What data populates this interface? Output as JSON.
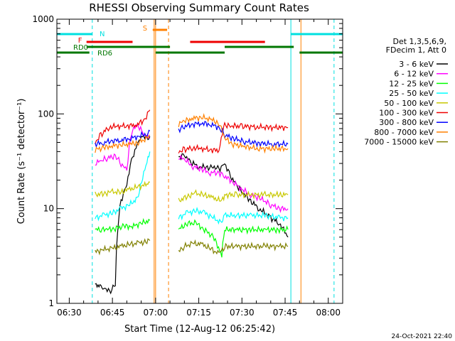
{
  "chart_data": {
    "type": "line",
    "title": "RHESSI Observing Summary Count Rates",
    "xlabel": "Start Time (12-Aug-12 06:25:42)",
    "ylabel": "Count Rate (s⁻¹ detector⁻¹)",
    "y_scale": "log",
    "ylim": [
      1,
      1000
    ],
    "xlim": [
      "06:25:42",
      "08:05:00"
    ],
    "x_ticks": [
      "06:30",
      "06:45",
      "07:00",
      "07:15",
      "07:30",
      "07:45",
      "08:00"
    ],
    "y_ticks": [
      "1",
      "10",
      "100",
      "1000"
    ],
    "timestamp": "24-Oct-2021 22:40",
    "legend": {
      "placement": "right",
      "header": [
        "Det 1,3,5,6,9,",
        "FDecim 1, Att 0"
      ]
    },
    "flags": [
      {
        "label": "N",
        "color": "#00e0e0",
        "segments": [
          [
            "06:25:42",
            "06:38:00"
          ],
          [
            "07:47:00",
            "08:05:00"
          ]
        ]
      },
      {
        "label": "F",
        "color": "#ee0000",
        "segments": [
          [
            "06:36:00",
            "06:52:00"
          ],
          [
            "07:12:00",
            "07:38:00"
          ]
        ]
      },
      {
        "label": "RD0",
        "color": "#007700",
        "segments": [
          [
            "06:36:00",
            "07:05:00"
          ],
          [
            "07:24:00",
            "07:48:00"
          ]
        ]
      },
      {
        "label": "RD6",
        "color": "#007700",
        "segments": [
          [
            "06:25:42",
            "06:37:00"
          ],
          [
            "07:00:00",
            "07:24:00"
          ],
          [
            "07:50:00",
            "08:05:00"
          ]
        ]
      },
      {
        "label": "S",
        "color": "#ff8000",
        "segments": [
          [
            "06:59:00",
            "07:04:00"
          ]
        ]
      }
    ],
    "series": [
      {
        "name": "3 - 6 keV",
        "color": "#000000",
        "segments": [
          {
            "x": [
              "06:39",
              "06:40",
              "06:41",
              "06:42",
              "06:44",
              "06:46",
              "06:48",
              "06:50",
              "06:52",
              "06:54",
              "06:55",
              "06:57",
              "06:58"
            ],
            "y": [
              1.6,
              1.6,
              1.5,
              1.5,
              1.3,
              1.6,
              12,
              18,
              35,
              50,
              60,
              55,
              58
            ]
          },
          {
            "x": [
              "07:08",
              "07:10",
              "07:12",
              "07:15",
              "07:18",
              "07:20",
              "07:22",
              "07:24",
              "07:26",
              "07:28",
              "07:30",
              "07:33",
              "07:36",
              "07:40",
              "07:43",
              "07:46"
            ],
            "y": [
              35,
              37,
              31,
              28,
              27,
              28,
              26,
              30,
              22,
              18,
              15,
              12,
              10,
              8,
              7,
              5
            ]
          }
        ]
      },
      {
        "name": "6 - 12 keV",
        "color": "#ff00ff",
        "segments": [
          {
            "x": [
              "06:39",
              "06:41",
              "06:43",
              "06:46",
              "06:48",
              "06:50",
              "06:52",
              "06:54",
              "06:56",
              "06:58"
            ],
            "y": [
              30,
              32,
              34,
              36,
              30,
              25,
              70,
              75,
              60,
              55
            ]
          },
          {
            "x": [
              "07:08",
              "07:10",
              "07:13",
              "07:16",
              "07:19",
              "07:22",
              "07:24",
              "07:27",
              "07:30",
              "07:33",
              "07:36",
              "07:40",
              "07:43",
              "07:46"
            ],
            "y": [
              35,
              33,
              28,
              26,
              24,
              24,
              22,
              19,
              16,
              14,
              13,
              11,
              10,
              10
            ]
          }
        ]
      },
      {
        "name": "12 - 25 keV",
        "color": "#00ff00",
        "segments": [
          {
            "x": [
              "06:39",
              "06:41",
              "06:43",
              "06:46",
              "06:49",
              "06:52",
              "06:55",
              "06:58"
            ],
            "y": [
              6,
              6,
              6,
              6.2,
              6.5,
              6.5,
              7,
              7.5
            ]
          },
          {
            "x": [
              "07:08",
              "07:11",
              "07:14",
              "07:17",
              "07:20",
              "07:23",
              "07:24",
              "07:28",
              "07:33",
              "07:38",
              "07:43",
              "07:46"
            ],
            "y": [
              6,
              7,
              7,
              6,
              5,
              3.2,
              6,
              6,
              6,
              6,
              6,
              6
            ]
          }
        ]
      },
      {
        "name": "25 - 50 keV",
        "color": "#00ffff",
        "segments": [
          {
            "x": [
              "06:39",
              "06:42",
              "06:45",
              "06:48",
              "06:51",
              "06:54",
              "06:57",
              "06:58"
            ],
            "y": [
              8,
              8.5,
              9,
              10,
              11,
              13,
              30,
              40
            ]
          },
          {
            "x": [
              "07:08",
              "07:11",
              "07:14",
              "07:17",
              "07:20",
              "07:23",
              "07:24",
              "07:28",
              "07:33",
              "07:38",
              "07:43",
              "07:46"
            ],
            "y": [
              8,
              9,
              9.5,
              9,
              8,
              7,
              8.5,
              8.5,
              8.5,
              8.5,
              8,
              8
            ]
          }
        ]
      },
      {
        "name": "50 - 100 keV",
        "color": "#c8c800",
        "segments": [
          {
            "x": [
              "06:39",
              "06:42",
              "06:45",
              "06:48",
              "06:51",
              "06:54",
              "06:57",
              "06:58"
            ],
            "y": [
              14,
              14.5,
              15,
              15,
              16,
              17,
              18,
              19
            ]
          },
          {
            "x": [
              "07:08",
              "07:11",
              "07:14",
              "07:17",
              "07:20",
              "07:23",
              "07:24",
              "07:28",
              "07:33",
              "07:38",
              "07:43",
              "07:46"
            ],
            "y": [
              12,
              13.5,
              14.5,
              14,
              13,
              12,
              14,
              14,
              14,
              14,
              14,
              14
            ]
          }
        ]
      },
      {
        "name": "100 - 300 keV",
        "color": "#ee0000",
        "segments": [
          {
            "x": [
              "06:39",
              "06:41",
              "06:44",
              "06:47",
              "06:50",
              "06:53",
              "06:56",
              "06:58"
            ],
            "y": [
              50,
              60,
              73,
              74,
              75,
              76,
              85,
              110
            ]
          },
          {
            "x": [
              "07:08",
              "07:10",
              "07:13",
              "07:16",
              "07:19",
              "07:22",
              "07:24",
              "07:26",
              "07:30",
              "07:35",
              "07:40",
              "07:46"
            ],
            "y": [
              40,
              42,
              44,
              43,
              42,
              41,
              77,
              75,
              74,
              73,
              72,
              72
            ]
          }
        ]
      },
      {
        "name": "300 - 800 keV",
        "color": "#0000ff",
        "segments": [
          {
            "x": [
              "06:39",
              "06:42",
              "06:45",
              "06:48",
              "06:51",
              "06:54",
              "06:57",
              "06:58"
            ],
            "y": [
              48,
              50,
              52,
              53,
              55,
              58,
              62,
              66
            ]
          },
          {
            "x": [
              "07:08",
              "07:10",
              "07:13",
              "07:16",
              "07:19",
              "07:22",
              "07:24",
              "07:27",
              "07:31",
              "07:36",
              "07:41",
              "07:46"
            ],
            "y": [
              68,
              74,
              78,
              80,
              78,
              72,
              60,
              55,
              51,
              49,
              48,
              48
            ]
          }
        ]
      },
      {
        "name": "800 - 7000 keV",
        "color": "#ff8000",
        "segments": [
          {
            "x": [
              "06:39",
              "06:42",
              "06:45",
              "06:48",
              "06:51",
              "06:54",
              "06:57",
              "06:58"
            ],
            "y": [
              42,
              44,
              46,
              47,
              48,
              50,
              55,
              60
            ]
          },
          {
            "x": [
              "07:08",
              "07:10",
              "07:13",
              "07:16",
              "07:19",
              "07:22",
              "07:24",
              "07:27",
              "07:31",
              "07:36",
              "07:41",
              "07:46"
            ],
            "y": [
              78,
              84,
              90,
              92,
              88,
              80,
              55,
              48,
              45,
              43,
              43,
              43
            ]
          }
        ]
      },
      {
        "name": "7000 - 15000 keV",
        "color": "#808000",
        "segments": [
          {
            "x": [
              "06:39",
              "06:42",
              "06:45",
              "06:48",
              "06:51",
              "06:54",
              "06:57",
              "06:58"
            ],
            "y": [
              3.5,
              3.7,
              3.8,
              4,
              4.2,
              4.3,
              4.5,
              4.6
            ]
          },
          {
            "x": [
              "07:08",
              "07:10",
              "07:13",
              "07:16",
              "07:19",
              "07:22",
              "07:24",
              "07:28",
              "07:33",
              "07:38",
              "07:43",
              "07:46"
            ],
            "y": [
              3.5,
              4,
              4.3,
              4.2,
              3.8,
              3.3,
              4,
              4,
              4,
              4,
              4,
              4
            ]
          }
        ]
      }
    ],
    "vertical_lines": [
      {
        "x": "06:38:00",
        "color": "#00e0e0",
        "style": "dashed"
      },
      {
        "x": "06:59:30",
        "color": "#ff8000",
        "style": "solid"
      },
      {
        "x": "07:00:00",
        "color": "#ff8000",
        "style": "solid"
      },
      {
        "x": "07:04:30",
        "color": "#ff8000",
        "style": "dashed"
      },
      {
        "x": "07:47:00",
        "color": "#00e0e0",
        "style": "solid"
      },
      {
        "x": "07:50:30",
        "color": "#ff8000",
        "style": "solid"
      },
      {
        "x": "08:02:00",
        "color": "#00e0e0",
        "style": "dashed"
      }
    ]
  }
}
